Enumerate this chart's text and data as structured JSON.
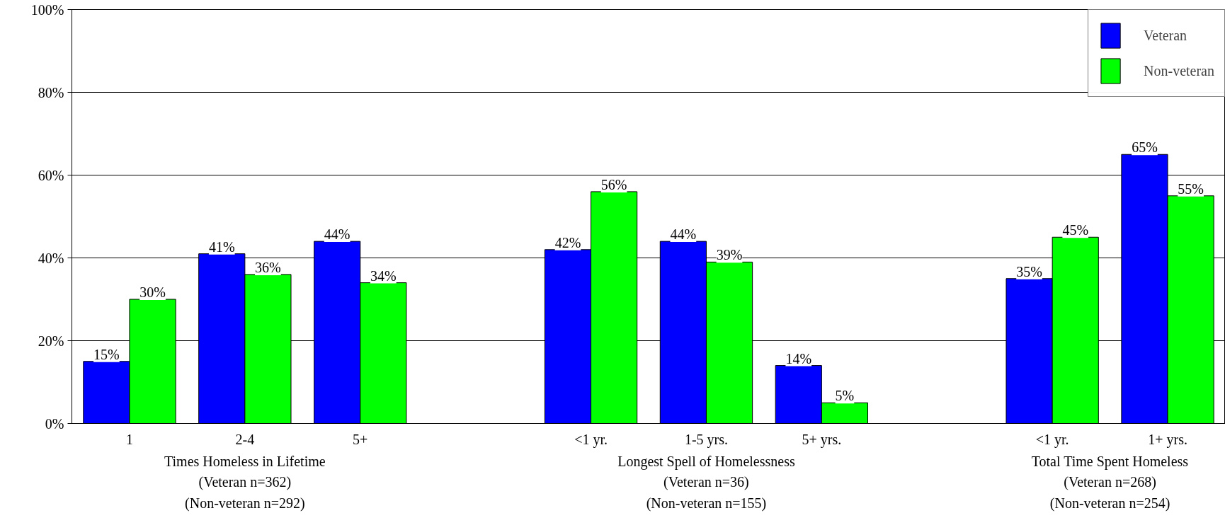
{
  "chart_data": {
    "type": "bar",
    "categories": [
      "1",
      "2-4",
      "5+",
      null,
      "<1 yr.",
      "1-5 yrs.",
      "5+ yrs.",
      null,
      "<1 yr.",
      "1+ yrs."
    ],
    "series": [
      {
        "name": "Veteran",
        "color": "#0000ff",
        "values": [
          15,
          41,
          44,
          null,
          42,
          44,
          14,
          null,
          35,
          65
        ],
        "value_labels": [
          "15%",
          "41%",
          "44%",
          null,
          "42%",
          "44%",
          "14%",
          null,
          "35%",
          "65%"
        ]
      },
      {
        "name": "Non-veteran",
        "color": "#00ff00",
        "values": [
          30,
          36,
          34,
          null,
          56,
          39,
          5,
          null,
          45,
          55
        ],
        "value_labels": [
          "30%",
          "36%",
          "34%",
          null,
          "56%",
          "39%",
          "5%",
          null,
          "45%",
          "55%"
        ]
      }
    ],
    "ylim": [
      0,
      100
    ],
    "yticks": [
      {
        "value": 0,
        "label": "0%"
      },
      {
        "value": 20,
        "label": "20%"
      },
      {
        "value": 40,
        "label": "40%"
      },
      {
        "value": 60,
        "label": "60%"
      },
      {
        "value": 80,
        "label": "80%"
      },
      {
        "value": 100,
        "label": "100%"
      }
    ],
    "grid": "y",
    "legend": "top right",
    "annotations": [
      "Times Homeless in Lifetime\n(Veteran n=362)\n(Non-veteran n=292)",
      "Longest Spell of Homelessness\n(Veteran n=36)\n(Non-veteran n=155)",
      "Total Time Spent Homeless\n(Veteran n=268)\n(Non-veteran n=254)"
    ]
  }
}
